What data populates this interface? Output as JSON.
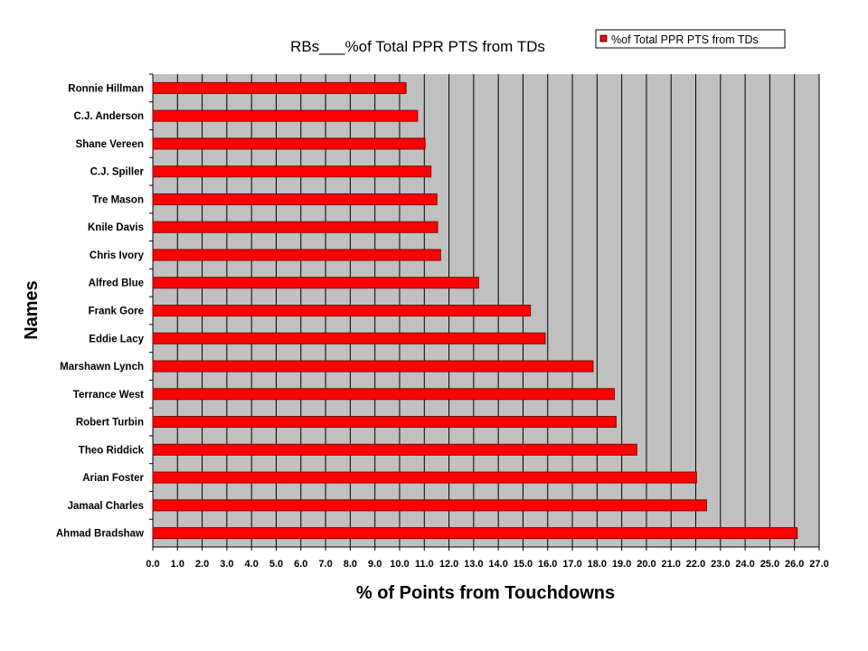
{
  "chart_data": {
    "type": "bar",
    "orientation": "horizontal",
    "title": "RBs___%of Total PPR PTS from TDs",
    "xlabel": "% of Points from Touchdowns",
    "ylabel": "Names",
    "xlim": [
      0,
      27
    ],
    "x_tick_step": 1,
    "x_tick_labels": [
      "0.0",
      "1.0",
      "2.0",
      "3.0",
      "4.0",
      "5.0",
      "6.0",
      "7.0",
      "8.0",
      "9.0",
      "10.0",
      "11.0",
      "12.0",
      "13.0",
      "14.0",
      "15.0",
      "16.0",
      "17.0",
      "18.0",
      "19.0",
      "20.0",
      "21.0",
      "22.0",
      "23.0",
      "24.0",
      "25.0",
      "26.0",
      "27.0"
    ],
    "grid": "vertical",
    "legend": {
      "placement": "top-right",
      "entries": [
        "%of Total PPR PTS from TDs"
      ]
    },
    "categories": [
      "Ronnie Hillman",
      "C.J. Anderson",
      "Shane Vereen",
      "C.J. Spiller",
      "Tre Mason",
      "Knile Davis",
      "Chris Ivory",
      "Alfred Blue",
      "Frank Gore",
      "Eddie Lacy",
      "Marshawn Lynch",
      "Terrance West",
      "Robert Turbin",
      "Theo Riddick",
      "Arian Foster",
      "Jamaal Charles",
      "Ahmad Bradshaw"
    ],
    "series": [
      {
        "name": "%of Total PPR PTS from TDs",
        "values": [
          10.26,
          10.73,
          11.03,
          11.27,
          11.51,
          11.54,
          11.66,
          13.2,
          15.3,
          15.9,
          17.84,
          18.7,
          18.77,
          19.61,
          22.03,
          22.44,
          26.11
        ]
      }
    ],
    "colors": {
      "bar": "#ff0000",
      "bar_border": "#800000",
      "plot_bg": "#c0c0c0",
      "grid": "#000000"
    }
  }
}
